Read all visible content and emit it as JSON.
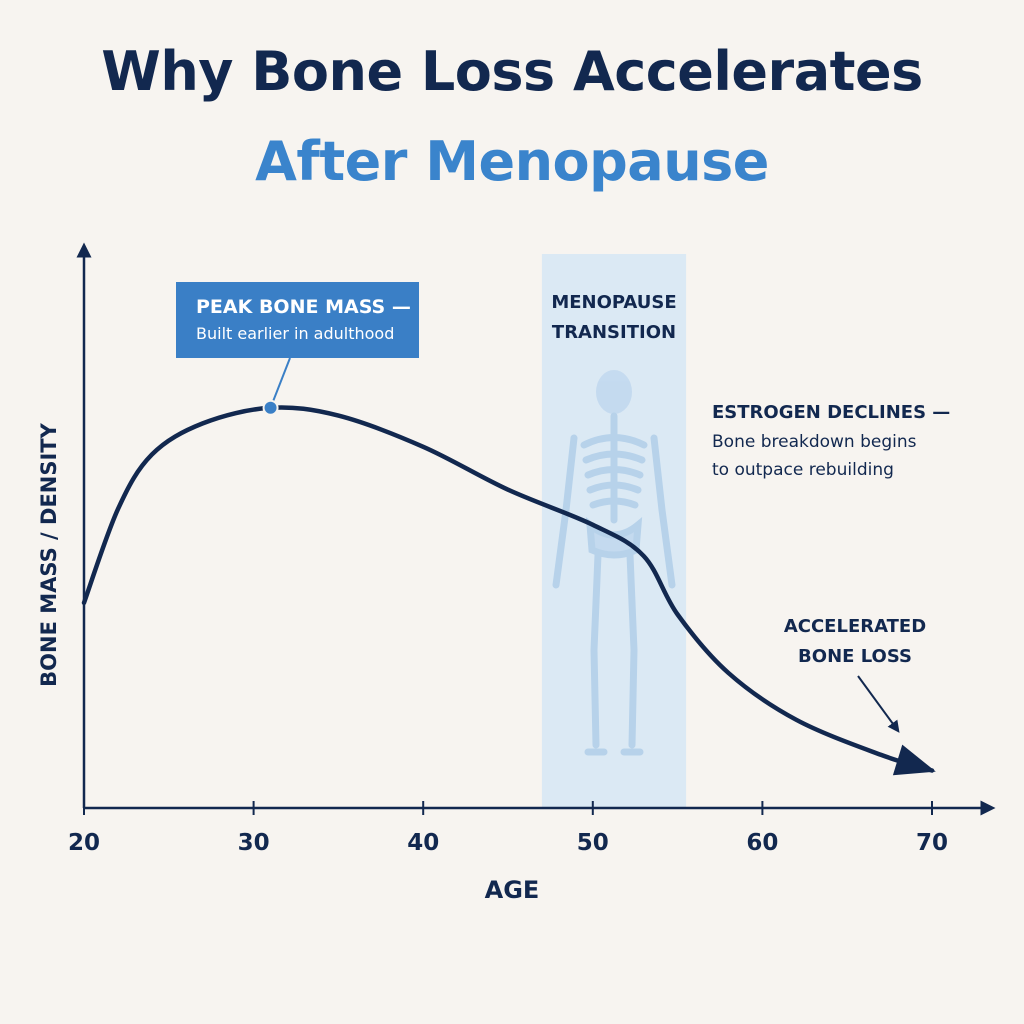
{
  "title_line1": "Why Bone Loss Accelerates",
  "title_line2": "After Menopause",
  "colors": {
    "navy": "#12284f",
    "accent_blue": "#3a84cc",
    "band_blue": "#d6e6f5",
    "callout_blue": "#3a7fc6",
    "background": "#f7f4f0"
  },
  "chart_data": {
    "type": "line",
    "xlabel": "AGE",
    "ylabel": "BONE MASS / DENSITY",
    "x_ticks": [
      20,
      30,
      40,
      50,
      60,
      70
    ],
    "xlim": [
      20,
      70
    ],
    "ylim": [
      0,
      100
    ],
    "y_ticks_shown": false,
    "grid": false,
    "series": [
      {
        "points": [
          {
            "x": 20,
            "y": 48
          },
          {
            "x": 22,
            "y": 72
          },
          {
            "x": 24,
            "y": 86
          },
          {
            "x": 27,
            "y": 94
          },
          {
            "x": 31,
            "y": 98
          },
          {
            "x": 35,
            "y": 96
          },
          {
            "x": 40,
            "y": 88
          },
          {
            "x": 45,
            "y": 77
          },
          {
            "x": 50,
            "y": 68
          },
          {
            "x": 53,
            "y": 60
          },
          {
            "x": 55,
            "y": 45
          },
          {
            "x": 58,
            "y": 30
          },
          {
            "x": 62,
            "y": 18
          },
          {
            "x": 67,
            "y": 9
          },
          {
            "x": 70,
            "y": 5
          }
        ]
      }
    ],
    "shaded_band": {
      "x_start": 47,
      "x_end": 55.5,
      "label_line1": "MENOPAUSE",
      "label_line2": "TRANSITION"
    },
    "peak_marker": {
      "x": 31,
      "y": 98
    },
    "annotations": {
      "peak_title": "PEAK BONE MASS —",
      "peak_body": "Built earlier in adulthood",
      "estrogen_title": "ESTROGEN DECLINES —",
      "estrogen_body_line1": "Bone breakdown begins",
      "estrogen_body_line2": "to outpace rebuilding",
      "accel_line1": "ACCELERATED",
      "accel_line2": "BONE LOSS"
    }
  }
}
